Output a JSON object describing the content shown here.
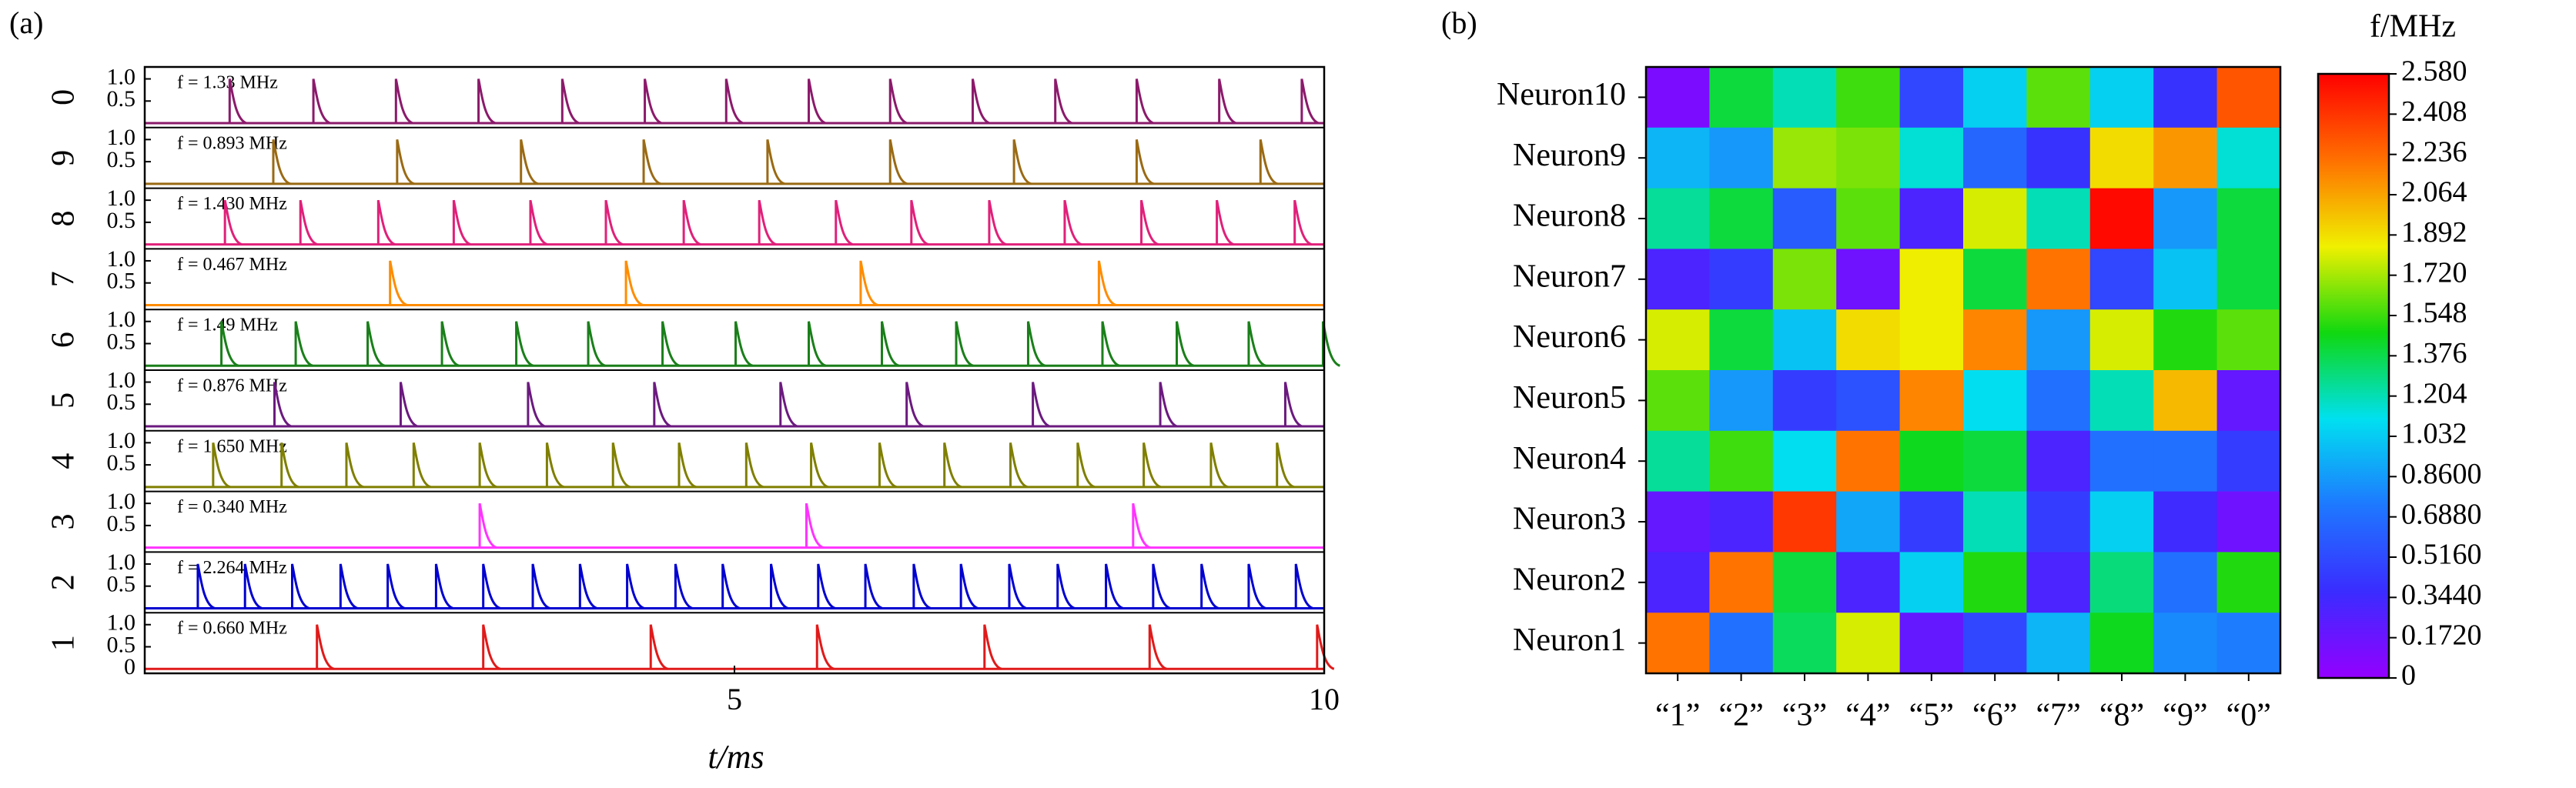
{
  "chart_data": [
    {
      "type": "spikes",
      "panel_label": "(a)",
      "x_label": "t/ms",
      "xlim": [
        0,
        10
      ],
      "xticks": [
        5,
        10
      ],
      "ylim": [
        -0.1,
        1.27
      ],
      "series": [
        {
          "name": "0",
          "color": "#8b1a6b",
          "annotation": "f = 1.33 MHz",
          "amplitude": 1.0,
          "yticks": [
            0.5,
            {
              "value": 1,
              "label": "1.0"
            }
          ],
          "spike_times": [
            0.72,
            1.43,
            2.13,
            2.83,
            3.54,
            4.24,
            4.93,
            5.63,
            6.32,
            7.02,
            7.72,
            8.41,
            9.11,
            9.81
          ]
        },
        {
          "name": "9",
          "color": "#9a6a14",
          "annotation": "f = 0.893 MHz",
          "amplitude": 1.0,
          "yticks": [
            0.5,
            {
              "value": 1,
              "label": "1.0"
            }
          ],
          "spike_times": [
            1.09,
            2.14,
            3.19,
            4.23,
            5.28,
            6.32,
            7.37,
            8.41,
            9.46
          ]
        },
        {
          "name": "8",
          "color": "#e0207a",
          "annotation": "f = 1.430 MHz",
          "amplitude": 1.0,
          "yticks": [
            0.5,
            {
              "value": 1,
              "label": "1.0"
            }
          ],
          "spike_times": [
            0.68,
            1.32,
            1.98,
            2.62,
            3.27,
            3.91,
            4.57,
            5.21,
            5.86,
            6.5,
            7.16,
            7.8,
            8.45,
            9.09,
            9.75
          ]
        },
        {
          "name": "7",
          "color": "#ff8c00",
          "annotation": "f = 0.467 MHz",
          "amplitude": 1.0,
          "yticks": [
            0.5,
            {
              "value": 1,
              "label": "1.0"
            }
          ],
          "spike_times": [
            2.08,
            4.08,
            6.07,
            8.09
          ]
        },
        {
          "name": "6",
          "color": "#1a7f1a",
          "annotation": "f = 1.49 MHz",
          "amplitude": 1.0,
          "yticks": [
            0.5,
            {
              "value": 1,
              "label": "1.0"
            }
          ],
          "spike_times": [
            0.65,
            1.28,
            1.89,
            2.52,
            3.15,
            3.76,
            4.39,
            5.01,
            5.63,
            6.25,
            6.88,
            7.49,
            8.12,
            8.75,
            9.36,
            9.99
          ]
        },
        {
          "name": "5",
          "color": "#6b1a7f",
          "annotation": "f = 0.876 MHz",
          "amplitude": 1.0,
          "yticks": [
            0.5,
            {
              "value": 1,
              "label": "1.0"
            }
          ],
          "spike_times": [
            1.1,
            2.17,
            3.25,
            4.32,
            5.39,
            6.46,
            7.53,
            8.61,
            9.67
          ]
        },
        {
          "name": "4",
          "color": "#7f7f00",
          "annotation": "f = 1.650 MHz",
          "amplitude": 1.0,
          "yticks": [
            0.5,
            {
              "value": 1,
              "label": "1.0"
            }
          ],
          "spike_times": [
            0.58,
            1.16,
            1.71,
            2.28,
            2.84,
            3.41,
            3.97,
            4.53,
            5.1,
            5.65,
            6.23,
            6.78,
            7.34,
            7.91,
            8.47,
            9.04,
            9.6
          ]
        },
        {
          "name": "3",
          "color": "#ff33ff",
          "annotation": "f = 0.340 MHz",
          "amplitude": 1.0,
          "yticks": [
            0.5,
            {
              "value": 1,
              "label": "1.0"
            }
          ],
          "spike_times": [
            2.84,
            5.61,
            8.38
          ]
        },
        {
          "name": "2",
          "color": "#0000d0",
          "label_color": "#e01a1a",
          "annotation": "f = 2.264 MHz",
          "amplitude": 1.0,
          "yticks": [
            0.5,
            {
              "value": 1,
              "label": "1.0"
            }
          ],
          "spike_times": [
            0.45,
            0.85,
            1.25,
            1.66,
            2.06,
            2.47,
            2.87,
            3.29,
            3.69,
            4.09,
            4.5,
            4.9,
            5.31,
            5.71,
            6.11,
            6.52,
            6.92,
            7.33,
            7.74,
            8.15,
            8.55,
            8.96,
            9.36,
            9.76
          ]
        },
        {
          "name": "1",
          "color": "#e01a1a",
          "annotation": "f = 0.660 MHz",
          "amplitude": 1.0,
          "yticks": [
            0,
            0.5,
            {
              "value": 1,
              "label": "1.0"
            }
          ],
          "spike_times": [
            1.46,
            2.87,
            4.29,
            5.7,
            7.12,
            8.52,
            9.94
          ]
        }
      ]
    },
    {
      "type": "heatmap",
      "panel_label": "(b)",
      "colorbar_label": "f/MHz",
      "x_categories": [
        "“1”",
        "“2”",
        "“3”",
        "“4”",
        "“5”",
        "“6”",
        "“7”",
        "“8”",
        "“9”",
        "“0”"
      ],
      "y_categories": [
        "Neuron10",
        "Neuron9",
        "Neuron8",
        "Neuron7",
        "Neuron6",
        "Neuron5",
        "Neuron4",
        "Neuron3",
        "Neuron2",
        "Neuron1"
      ],
      "values": [
        [
          0.1,
          1.4,
          1.2,
          1.55,
          0.5,
          1.05,
          1.6,
          1.05,
          0.4,
          2.3
        ],
        [
          0.95,
          0.85,
          1.7,
          1.65,
          1.15,
          0.65,
          0.4,
          1.9,
          2.1,
          1.15
        ],
        [
          1.25,
          1.4,
          0.6,
          1.6,
          0.3,
          1.8,
          1.2,
          2.55,
          0.85,
          1.4
        ],
        [
          0.3,
          0.45,
          1.65,
          0.15,
          1.85,
          1.4,
          2.2,
          0.5,
          1.0,
          1.4
        ],
        [
          1.8,
          1.4,
          1.0,
          1.9,
          1.85,
          2.15,
          0.85,
          1.8,
          1.5,
          1.6
        ],
        [
          1.6,
          0.85,
          0.45,
          0.55,
          2.15,
          1.1,
          0.7,
          1.2,
          2.0,
          0.2
        ],
        [
          1.25,
          1.55,
          1.1,
          2.2,
          1.45,
          1.4,
          0.3,
          0.7,
          0.7,
          0.45
        ],
        [
          0.2,
          0.3,
          2.4,
          0.9,
          0.45,
          1.2,
          0.45,
          1.05,
          0.35,
          0.15
        ],
        [
          0.3,
          2.2,
          1.4,
          0.3,
          1.05,
          1.5,
          0.3,
          1.3,
          0.7,
          1.5
        ],
        [
          2.2,
          0.7,
          1.35,
          1.8,
          0.2,
          0.5,
          0.95,
          1.45,
          0.8,
          0.75
        ]
      ],
      "zlim": [
        0,
        2.58
      ],
      "zticks": [
        0,
        {
          "value": 0.172,
          "label": "0.1720"
        },
        {
          "value": 0.344,
          "label": "0.3440"
        },
        {
          "value": 0.516,
          "label": "0.5160"
        },
        {
          "value": 0.688,
          "label": "0.6880"
        },
        {
          "value": 0.86,
          "label": "0.8600"
        },
        1.032,
        1.204,
        1.376,
        1.548,
        {
          "value": 1.72,
          "label": "1.720"
        },
        1.892,
        2.064,
        2.236,
        2.408,
        {
          "value": 2.58,
          "label": "2.580"
        }
      ],
      "colorscale": [
        "#9400ff",
        "#3a2cff",
        "#1e78ff",
        "#00e0f0",
        "#10d810",
        "#f0f000",
        "#ff7000",
        "#ff0000"
      ]
    }
  ]
}
